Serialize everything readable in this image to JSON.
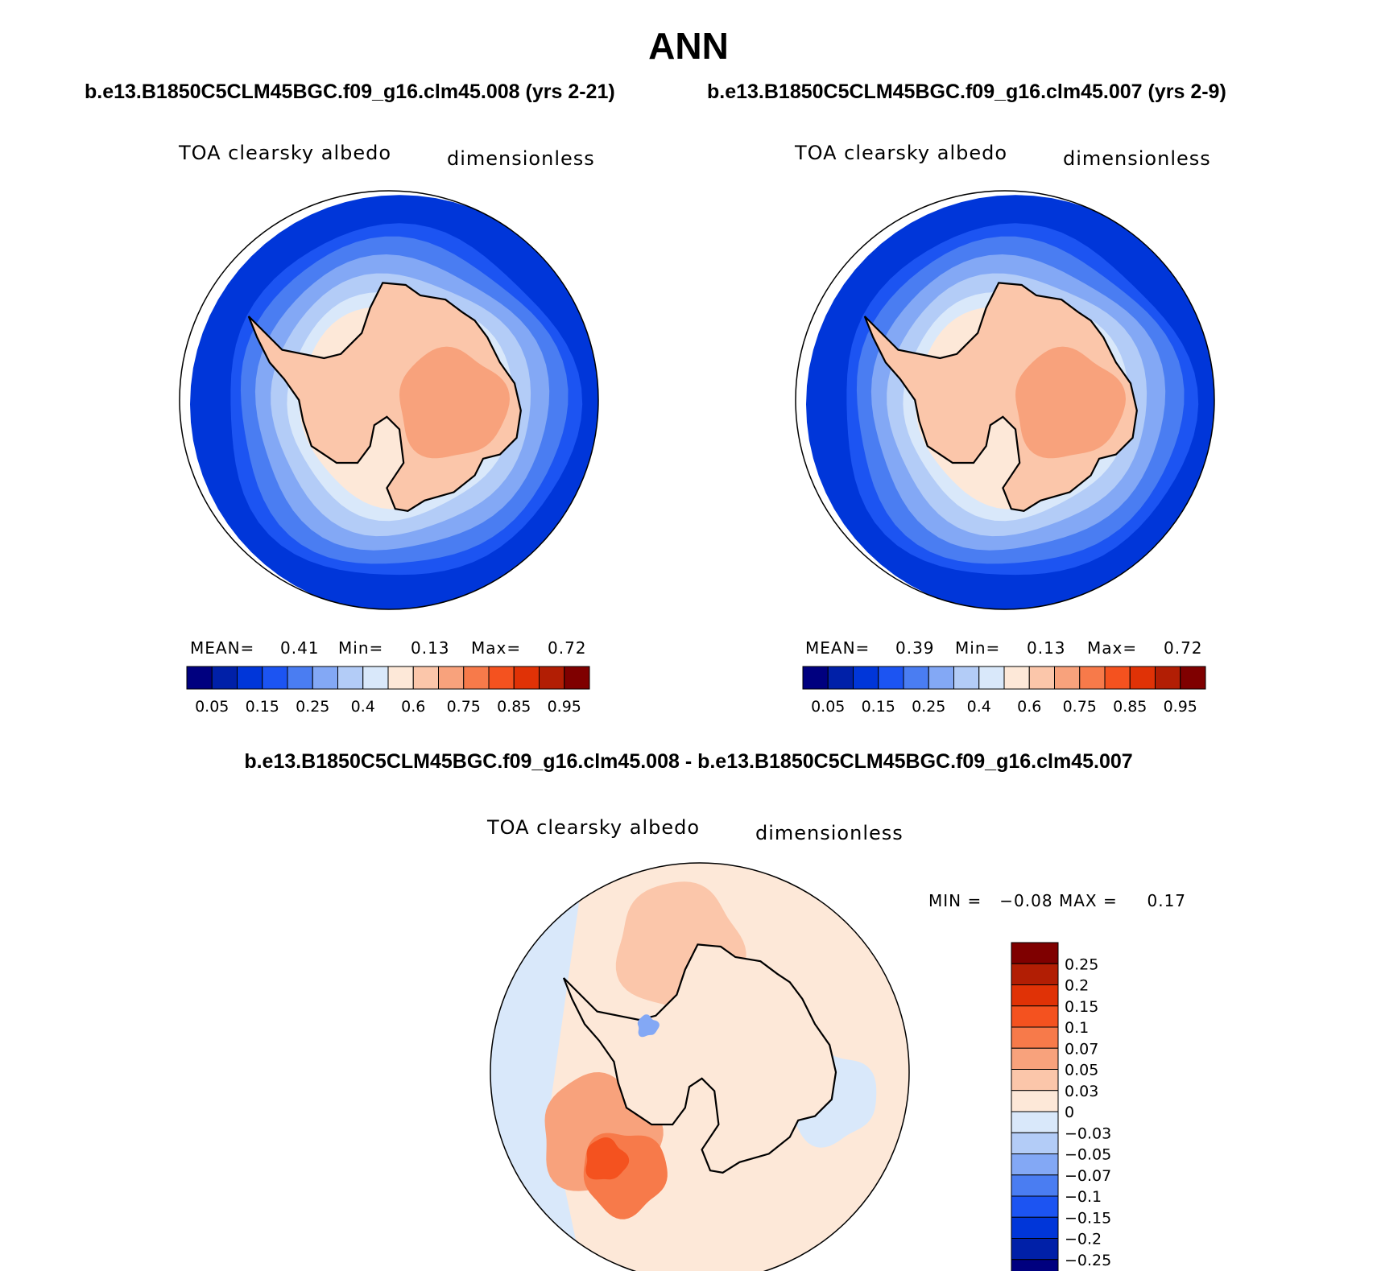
{
  "season": "ANN",
  "case_left": "b.e13.B1850C5CLM45BGC.f09_g16.clm45.008 (yrs 2-21)",
  "case_right": "b.e13.B1850C5CLM45BGC.f09_g16.clm45.007 (yrs 2-9)",
  "diff_title": "b.e13.B1850C5CLM45BGC.f09_g16.clm45.008 - b.e13.B1850C5CLM45BGC.f09_g16.clm45.007",
  "panels": [
    {
      "variable": "TOA clearsky albedo",
      "units": "dimensionless",
      "mean_label": "MEAN=",
      "mean": "0.41",
      "min_label": "Min=",
      "min": "0.13",
      "max_label": "Max=",
      "max": "0.72"
    },
    {
      "variable": "TOA clearsky albedo",
      "units": "dimensionless",
      "mean_label": "MEAN=",
      "mean": "0.39",
      "min_label": "Min=",
      "min": "0.13",
      "max_label": "Max=",
      "max": "0.72"
    },
    {
      "variable": "TOA clearsky albedo",
      "units": "dimensionless",
      "minmax_label": "MIN =   −0.08 MAX =     0.17"
    }
  ],
  "chart_data": [
    {
      "type": "heatmap",
      "projection": "south-polar-stereographic",
      "title": "TOA clearsky albedo",
      "units": "dimensionless",
      "mean": 0.41,
      "min": 0.13,
      "max": 0.72,
      "colorbar_levels": [
        0.05,
        0.1,
        0.15,
        0.2,
        0.25,
        0.3,
        0.4,
        0.5,
        0.6,
        0.7,
        0.75,
        0.8,
        0.85,
        0.9,
        0.95
      ],
      "colorbar_tick_labels": [
        "0.05",
        "0.15",
        "0.25",
        "0.4",
        "0.6",
        "0.75",
        "0.85",
        "0.95"
      ],
      "colors": [
        "#00007f",
        "#0020a8",
        "#0036d9",
        "#1c54f2",
        "#4a7df2",
        "#83a8f5",
        "#b3ccf7",
        "#d9e8fa",
        "#fde8d8",
        "#fbc6aa",
        "#f8a27c",
        "#f77a4a",
        "#f4521f",
        "#e03206",
        "#b21e04",
        "#7f0000"
      ]
    },
    {
      "type": "heatmap",
      "projection": "south-polar-stereographic",
      "title": "TOA clearsky albedo",
      "units": "dimensionless",
      "mean": 0.39,
      "min": 0.13,
      "max": 0.72,
      "colorbar_levels": [
        0.05,
        0.1,
        0.15,
        0.2,
        0.25,
        0.3,
        0.4,
        0.5,
        0.6,
        0.7,
        0.75,
        0.8,
        0.85,
        0.9,
        0.95
      ],
      "colorbar_tick_labels": [
        "0.05",
        "0.15",
        "0.25",
        "0.4",
        "0.6",
        "0.75",
        "0.85",
        "0.95"
      ],
      "colors": [
        "#00007f",
        "#0020a8",
        "#0036d9",
        "#1c54f2",
        "#4a7df2",
        "#83a8f5",
        "#b3ccf7",
        "#d9e8fa",
        "#fde8d8",
        "#fbc6aa",
        "#f8a27c",
        "#f77a4a",
        "#f4521f",
        "#e03206",
        "#b21e04",
        "#7f0000"
      ]
    },
    {
      "type": "heatmap",
      "projection": "south-polar-stereographic",
      "title": "TOA clearsky albedo",
      "units": "dimensionless",
      "min": -0.08,
      "max": 0.17,
      "colorbar_levels": [
        -0.25,
        -0.2,
        -0.15,
        -0.1,
        -0.07,
        -0.05,
        -0.03,
        0,
        0.03,
        0.05,
        0.07,
        0.1,
        0.15,
        0.2,
        0.25
      ],
      "colorbar_tick_labels": [
        "0.25",
        "0.2",
        "0.15",
        "0.1",
        "0.07",
        "0.05",
        "0.03",
        "0",
        "−0.03",
        "−0.05",
        "−0.07",
        "−0.1",
        "−0.15",
        "−0.2",
        "−0.25"
      ],
      "colors": [
        "#00007f",
        "#0020a8",
        "#0036d9",
        "#1c54f2",
        "#4a7df2",
        "#83a8f5",
        "#b3ccf7",
        "#d9e8fa",
        "#fde8d8",
        "#fbc6aa",
        "#f8a27c",
        "#f77a4a",
        "#f4521f",
        "#e03206",
        "#b21e04",
        "#7f0000"
      ]
    }
  ]
}
